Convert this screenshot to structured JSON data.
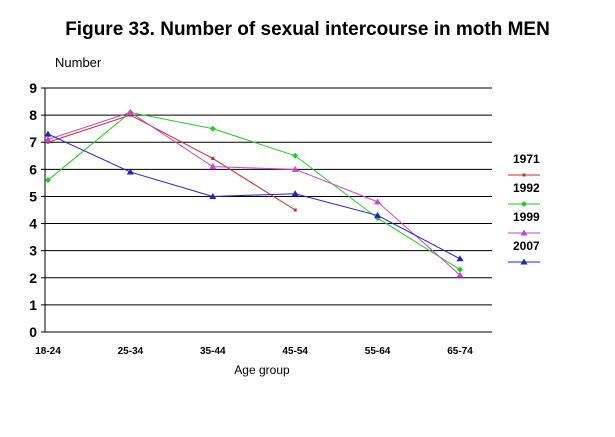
{
  "chart_data": {
    "type": "line",
    "title": "Figure 33. Number of sexual intercourse in moth MEN",
    "ylabel": "Number",
    "xlabel": "Age group",
    "categories": [
      "18-24",
      "25-34",
      "35-44",
      "45-54",
      "55-64",
      "65-74"
    ],
    "ylim": [
      0,
      9
    ],
    "yticks": [
      "0",
      "1",
      "2",
      "3",
      "4",
      "5",
      "6",
      "7",
      "8",
      "9"
    ],
    "grid": true,
    "legend_position": "right",
    "series": [
      {
        "name": "1971",
        "color": "#cc2a2a",
        "marker": "square",
        "values": [
          7.0,
          8.0,
          6.4,
          4.5,
          null,
          null
        ]
      },
      {
        "name": "1992",
        "color": "#22cc22",
        "marker": "diamond",
        "values": [
          5.6,
          8.1,
          7.5,
          6.5,
          4.2,
          2.3
        ]
      },
      {
        "name": "1999",
        "color": "#cc44cc",
        "marker": "triangle",
        "values": [
          7.1,
          8.1,
          6.1,
          6.0,
          4.8,
          2.1
        ]
      },
      {
        "name": "2007",
        "color": "#2222cc",
        "marker": "triangle",
        "values": [
          7.3,
          5.9,
          5.0,
          5.1,
          4.3,
          2.7
        ]
      }
    ]
  }
}
